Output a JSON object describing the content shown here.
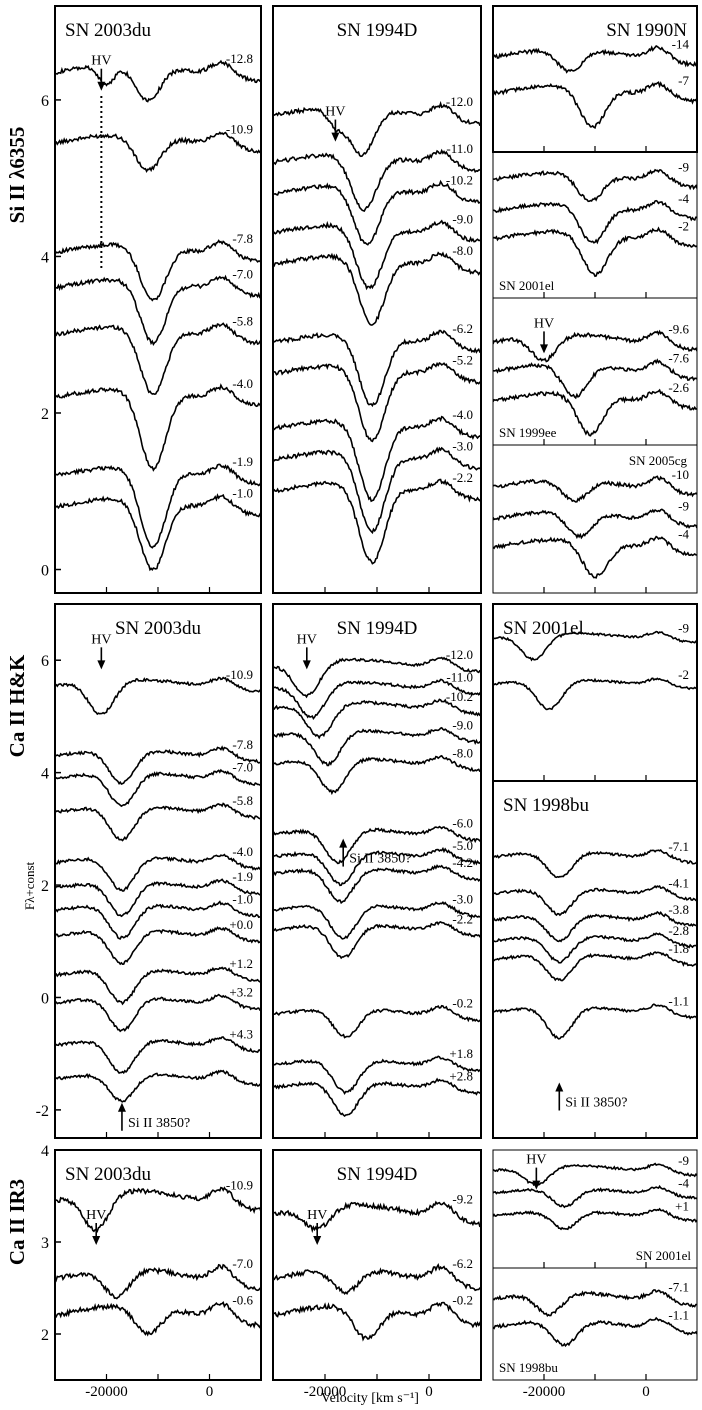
{
  "figure": {
    "xlabel": "Velocity [km s⁻¹]",
    "ylabel_mid": "Fλ+const",
    "x_ticks": [
      "-20000",
      "0"
    ],
    "row_labels": [
      "Si II λ6355",
      "Ca II H&K",
      "Ca II IR3"
    ]
  },
  "chart_data": [
    {
      "type": "line",
      "line": "Si II λ6355",
      "title": "SN 2003du",
      "xlim": [
        -30000,
        10000
      ],
      "ylim": [
        -0.3,
        7.2
      ],
      "y_ticks": [
        0,
        2,
        4,
        6
      ],
      "annotations": [
        {
          "text": "HV",
          "x": -21000,
          "y": 6.45
        }
      ],
      "vline": {
        "x": -21000,
        "y0": 3.85,
        "y1": 6.05
      },
      "series": [
        {
          "name": "-12.8",
          "offset": 6.35,
          "min_v": -12000,
          "depth": 0.45,
          "hv": [
            -20000,
            0.25
          ]
        },
        {
          "name": "-10.9",
          "offset": 5.45,
          "min_v": -12000,
          "depth": 0.45
        },
        {
          "name": "-7.8",
          "offset": 4.05,
          "min_v": -11000,
          "depth": 0.7
        },
        {
          "name": "-7.0",
          "offset": 3.6,
          "min_v": -11000,
          "depth": 0.8
        },
        {
          "name": "-5.8",
          "offset": 3.0,
          "min_v": -11000,
          "depth": 0.85
        },
        {
          "name": "-4.0",
          "offset": 2.2,
          "min_v": -11000,
          "depth": 1.0
        },
        {
          "name": "-1.9",
          "offset": 1.2,
          "min_v": -11000,
          "depth": 1.0
        },
        {
          "name": "-1.0",
          "offset": 0.8,
          "min_v": -11000,
          "depth": 0.9
        }
      ]
    },
    {
      "type": "line",
      "line": "Si II λ6355",
      "title": "SN 1994D",
      "xlim": [
        -30000,
        10000
      ],
      "ylim": [
        -0.3,
        7.2
      ],
      "annotations": [
        {
          "text": "HV",
          "x": -18000,
          "y": 5.8
        }
      ],
      "series": [
        {
          "name": "-12.0",
          "offset": 5.8,
          "min_v": -13000,
          "depth": 0.6,
          "hv": [
            -18000,
            0.2
          ]
        },
        {
          "name": "-11.0",
          "offset": 5.2,
          "min_v": -12500,
          "depth": 0.7
        },
        {
          "name": "-10.2",
          "offset": 4.8,
          "min_v": -12000,
          "depth": 0.75
        },
        {
          "name": "-9.0",
          "offset": 4.3,
          "min_v": -11500,
          "depth": 0.8
        },
        {
          "name": "-8.0",
          "offset": 3.9,
          "min_v": -11000,
          "depth": 0.85
        },
        {
          "name": "-6.2",
          "offset": 2.9,
          "min_v": -11000,
          "depth": 0.9
        },
        {
          "name": "-5.2",
          "offset": 2.5,
          "min_v": -11000,
          "depth": 0.95
        },
        {
          "name": "-4.0",
          "offset": 1.8,
          "min_v": -11000,
          "depth": 1.0
        },
        {
          "name": "-3.0",
          "offset": 1.4,
          "min_v": -11000,
          "depth": 1.0
        },
        {
          "name": "-2.2",
          "offset": 1.0,
          "min_v": -11000,
          "depth": 1.0
        }
      ]
    },
    {
      "type": "line",
      "line": "Si II λ6355",
      "title": "SN 1990N",
      "xlim": [
        -30000,
        10000
      ],
      "ylim": [
        5.2,
        7.2
      ],
      "series": [
        {
          "name": "-14",
          "offset": 6.5,
          "min_v": -15000,
          "depth": 0.3
        },
        {
          "name": "-7",
          "offset": 6.0,
          "min_v": -10500,
          "depth": 0.55
        }
      ]
    },
    {
      "type": "line",
      "line": "Si II λ6355",
      "title": "SN 2001el",
      "xlim": [
        -30000,
        10000
      ],
      "ylim": [
        3.8,
        5.9
      ],
      "series": [
        {
          "name": "-9",
          "offset": 5.5,
          "min_v": -11000,
          "depth": 0.4
        },
        {
          "name": "-4",
          "offset": 5.05,
          "min_v": -10500,
          "depth": 0.55
        },
        {
          "name": "-2",
          "offset": 4.65,
          "min_v": -10000,
          "depth": 0.6
        }
      ]
    },
    {
      "type": "line",
      "line": "Si II λ6355",
      "title": "SN 1999ee",
      "xlim": [
        -30000,
        10000
      ],
      "ylim": [
        1.9,
        3.9
      ],
      "annotations": [
        {
          "text": "HV",
          "x": -20000,
          "y": 3.5
        }
      ],
      "series": [
        {
          "name": "-9.6",
          "offset": 3.3,
          "min_v": -20000,
          "depth": 0.35
        },
        {
          "name": "-7.6",
          "offset": 2.9,
          "min_v": -14000,
          "depth": 0.45
        },
        {
          "name": "-2.6",
          "offset": 2.5,
          "min_v": -11000,
          "depth": 0.55
        }
      ]
    },
    {
      "type": "line",
      "line": "Si II λ6355",
      "title": "SN 2005cg",
      "xlim": [
        -30000,
        10000
      ],
      "ylim": [
        -0.3,
        1.8
      ],
      "series": [
        {
          "name": "-10",
          "offset": 1.2,
          "min_v": -14000,
          "depth": 0.3
        },
        {
          "name": "-9",
          "offset": 0.75,
          "min_v": -13000,
          "depth": 0.35
        },
        {
          "name": "-4",
          "offset": 0.35,
          "min_v": -10000,
          "depth": 0.5
        }
      ]
    },
    {
      "type": "line",
      "line": "Ca II H&K",
      "title": "SN 2003du",
      "xlim": [
        -30000,
        10000
      ],
      "ylim": [
        -2.5,
        7.0
      ],
      "y_ticks": [
        -2,
        0,
        2,
        4,
        6
      ],
      "annotations": [
        {
          "text": "HV",
          "x": -21000,
          "y": 6.3
        },
        {
          "text": "Si II 3850?",
          "x": -17000,
          "y": -2.3
        }
      ],
      "series": [
        {
          "name": "-10.9",
          "offset": 5.55,
          "min_v": -21000,
          "depth": 0.6
        },
        {
          "name": "-7.8",
          "offset": 4.3,
          "min_v": -17000,
          "depth": 0.6
        },
        {
          "name": "-7.0",
          "offset": 3.9,
          "min_v": -17000,
          "depth": 0.6
        },
        {
          "name": "-5.8",
          "offset": 3.3,
          "min_v": -17000,
          "depth": 0.6
        },
        {
          "name": "-4.0",
          "offset": 2.4,
          "min_v": -17000,
          "depth": 0.6
        },
        {
          "name": "-1.9",
          "offset": 1.95,
          "min_v": -17000,
          "depth": 0.6
        },
        {
          "name": "-1.0",
          "offset": 1.55,
          "min_v": -17000,
          "depth": 0.6
        },
        {
          "name": "+0.0",
          "offset": 1.1,
          "min_v": -17000,
          "depth": 0.6
        },
        {
          "name": "+1.2",
          "offset": 0.4,
          "min_v": -17000,
          "depth": 0.6
        },
        {
          "name": "+3.2",
          "offset": -0.1,
          "min_v": -17000,
          "depth": 0.6
        },
        {
          "name": "+4.3",
          "offset": -0.85,
          "min_v": -17000,
          "depth": 0.6
        },
        {
          "name": "",
          "offset": -1.45,
          "min_v": -17000,
          "depth": 0.5
        }
      ]
    },
    {
      "type": "line",
      "line": "Ca II H&K",
      "title": "SN 1994D",
      "xlim": [
        -30000,
        10000
      ],
      "ylim": [
        -2.5,
        7.0
      ],
      "annotations": [
        {
          "text": "HV",
          "x": -23500,
          "y": 6.3
        },
        {
          "text": "Si II 3850?",
          "x": -16500,
          "y": 2.4
        }
      ],
      "series": [
        {
          "name": "-12.0",
          "offset": 5.9,
          "min_v": -23500,
          "depth": 0.6
        },
        {
          "name": "-11.0",
          "offset": 5.5,
          "min_v": -22500,
          "depth": 0.6
        },
        {
          "name": "-10.2",
          "offset": 5.15,
          "min_v": -21000,
          "depth": 0.6
        },
        {
          "name": "-9.0",
          "offset": 4.65,
          "min_v": -19500,
          "depth": 0.6
        },
        {
          "name": "-8.0",
          "offset": 4.15,
          "min_v": -18500,
          "depth": 0.6
        },
        {
          "name": "-6.0",
          "offset": 2.9,
          "min_v": -17500,
          "depth": 0.6
        },
        {
          "name": "-5.0",
          "offset": 2.5,
          "min_v": -17000,
          "depth": 0.6
        },
        {
          "name": "-4.2",
          "offset": 2.2,
          "min_v": -17000,
          "depth": 0.6
        },
        {
          "name": "-3.0",
          "offset": 1.55,
          "min_v": -16500,
          "depth": 0.6
        },
        {
          "name": "-2.2",
          "offset": 1.2,
          "min_v": -16500,
          "depth": 0.6
        },
        {
          "name": "-0.2",
          "offset": -0.3,
          "min_v": -16000,
          "depth": 0.5
        },
        {
          "name": "+1.8",
          "offset": -1.2,
          "min_v": -16000,
          "depth": 0.6
        },
        {
          "name": "+2.8",
          "offset": -1.6,
          "min_v": -16000,
          "depth": 0.6
        }
      ]
    },
    {
      "type": "line",
      "line": "Ca II H&K",
      "title": "SN 2001el",
      "xlim": [
        -30000,
        10000
      ],
      "ylim": [
        2.8,
        7.0
      ],
      "series": [
        {
          "name": "-9",
          "offset": 6.2,
          "min_v": -22000,
          "depth": 0.6
        },
        {
          "name": "-2",
          "offset": 5.1,
          "min_v": -19000,
          "depth": 0.7
        }
      ]
    },
    {
      "type": "line",
      "line": "Ca II H&K",
      "title": "SN 1998bu",
      "xlim": [
        -30000,
        10000
      ],
      "ylim": [
        -2.5,
        4.3
      ],
      "annotations": [
        {
          "text": "Si II 3850?",
          "x": -17000,
          "y": -1.9
        }
      ],
      "series": [
        {
          "name": "-7.1",
          "offset": 2.85,
          "min_v": -17000,
          "depth": 0.5
        },
        {
          "name": "-4.1",
          "offset": 2.15,
          "min_v": -17000,
          "depth": 0.5
        },
        {
          "name": "-3.8",
          "offset": 1.65,
          "min_v": -17000,
          "depth": 0.5
        },
        {
          "name": "-2.8",
          "offset": 1.25,
          "min_v": -17000,
          "depth": 0.5
        },
        {
          "name": "-1.8",
          "offset": 0.9,
          "min_v": -17000,
          "depth": 0.5
        },
        {
          "name": "-1.1",
          "offset": -0.1,
          "min_v": -17000,
          "depth": 0.6
        }
      ]
    },
    {
      "type": "line",
      "line": "Ca II IR3",
      "title": "SN 2003du",
      "xlim": [
        -30000,
        10000
      ],
      "ylim": [
        1.5,
        4.0
      ],
      "y_ticks": [
        2,
        3,
        4
      ],
      "annotations": [
        {
          "text": "HV",
          "x": -22000,
          "y": 3.25
        }
      ],
      "series": [
        {
          "name": "-10.9",
          "offset": 3.45,
          "min_v": -22000,
          "depth": 0.4
        },
        {
          "name": "-7.0",
          "offset": 2.6,
          "min_v": -18000,
          "depth": 0.3
        },
        {
          "name": "-0.6",
          "offset": 2.2,
          "min_v": -12000,
          "depth": 0.3
        }
      ]
    },
    {
      "type": "line",
      "line": "Ca II IR3",
      "title": "SN 1994D",
      "xlim": [
        -30000,
        10000
      ],
      "ylim": [
        1.5,
        4.0
      ],
      "annotations": [
        {
          "text": "HV",
          "x": -21500,
          "y": 3.25
        }
      ],
      "series": [
        {
          "name": "-9.2",
          "offset": 3.3,
          "min_v": -21500,
          "depth": 0.25
        },
        {
          "name": "-6.2",
          "offset": 2.6,
          "min_v": -16000,
          "depth": 0.25
        },
        {
          "name": "-0.2",
          "offset": 2.2,
          "min_v": -12000,
          "depth": 0.35
        }
      ]
    },
    {
      "type": "line",
      "line": "Ca II IR3",
      "title": "SN 2001el",
      "xlim": [
        -30000,
        10000
      ],
      "ylim": [
        3.4,
        6.0
      ],
      "annotations": [
        {
          "text": "HV",
          "x": -21500,
          "y": 5.7
        }
      ],
      "series": [
        {
          "name": "-9",
          "offset": 5.55,
          "min_v": -21500,
          "depth": 0.4
        },
        {
          "name": "-4",
          "offset": 5.05,
          "min_v": -16000,
          "depth": 0.4
        },
        {
          "name": "+1",
          "offset": 4.55,
          "min_v": -16000,
          "depth": 0.4
        }
      ]
    },
    {
      "type": "line",
      "line": "Ca II IR3",
      "title": "SN 1998bu",
      "xlim": [
        -30000,
        10000
      ],
      "ylim": [
        2.2,
        4.0
      ],
      "series": [
        {
          "name": "-7.1",
          "offset": 3.5,
          "min_v": -19000,
          "depth": 0.35
        },
        {
          "name": "-1.1",
          "offset": 3.05,
          "min_v": -16000,
          "depth": 0.4
        }
      ]
    }
  ]
}
